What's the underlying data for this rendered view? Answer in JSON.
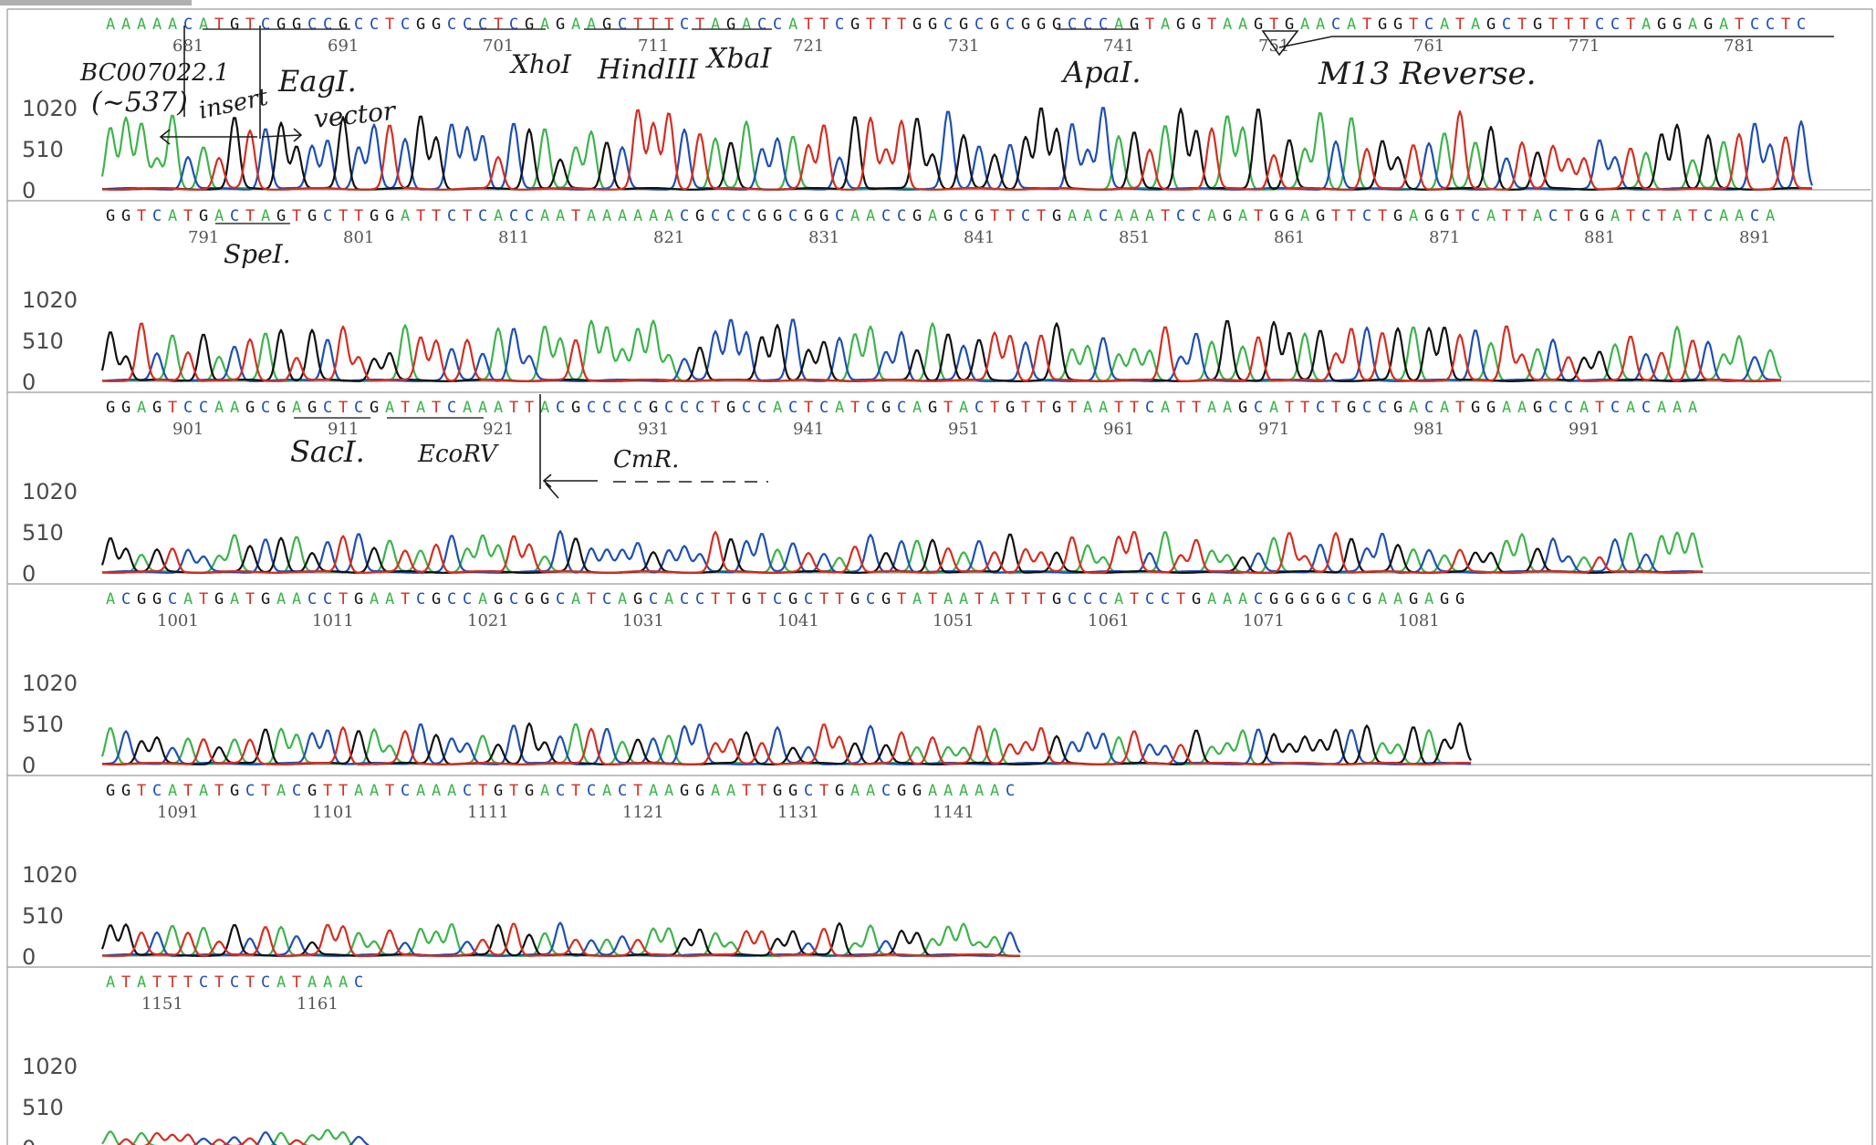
{
  "chart_data": {
    "type": "chromatogram",
    "y_ticks": [
      "1020",
      "510",
      "0"
    ],
    "ylim": [
      0,
      1400
    ],
    "colors": {
      "A": "#3cb44b",
      "C": "#1e4fb4",
      "G": "#111111",
      "T": "#d62d20"
    },
    "rows": [
      {
        "start": 676,
        "bases": "AAAAACATGTCGGCCGCCTCGGCCCTCGAGAAGCTTTCTAGACCATTCGTTTGGCGCGCGGGCCCAGTAGGTAAGTGAACATGGTCATAGCTGTTTCCTAGGAGATCCTC",
        "labels": [
          "681",
          "691",
          "701",
          "711",
          "721",
          "731",
          "741",
          "751",
          "761",
          "771",
          "781"
        ],
        "amp": 1.0
      },
      {
        "start": 785,
        "bases": "GGTCATGACTAGTGCTTGGATTCTCACCAATAAAAAACGCCCGGCGGCAACCGAGCGTTCTGAACAAATCCAGATGGAGTTCTGAGGTCATTACTGGATCTATCAACA",
        "labels": [
          "791",
          "801",
          "811",
          "821",
          "831",
          "841",
          "851",
          "861",
          "871",
          "881",
          "891"
        ],
        "amp": 0.75
      },
      {
        "start": 896,
        "bases": "GGAGTCCAAGCGAGCTCGATATCAAATTACGCCCCGCCCTGCCACTCATCGCAGTACTGTTGTAATTCATTAAGCATTCTGCCGACATGGAAGCCATCACAAA",
        "labels": [
          "901",
          "911",
          "921",
          "931",
          "941",
          "951",
          "961",
          "971",
          "981",
          "991"
        ],
        "amp": 0.5
      },
      {
        "start": 997,
        "bases": "ACGGCATGATGAACCTGAATCGCCAGCGGCATCAGCACCTTGTCGCTTGCGTATAATATTTGCCCATCCTGAAACGGGGGCGAAGAGG",
        "labels": [
          "1001",
          "1011",
          "1021",
          "1031",
          "1041",
          "1051",
          "1061",
          "1071",
          "1081"
        ],
        "amp": 0.5
      },
      {
        "start": 1087,
        "bases": "GGTCATATGCTACGTTAATCAAACTGTGACTCACTAAGGAATTGGCTGAACGGAAAAAC",
        "labels": [
          "1091",
          "1101",
          "1111",
          "1121",
          "1131",
          "1141"
        ],
        "amp": 0.4
      },
      {
        "start": 1148,
        "bases": "ATATTTCTCTCATAAAC",
        "labels": [
          "1151",
          "1161"
        ],
        "amp": 0.2
      }
    ]
  },
  "annotations": {
    "accession_line1": "BC007022.1",
    "accession_line2": "(~537)",
    "insert": "insert",
    "vector": "vector",
    "eagi": "EagI.",
    "xhoi": "XhoI",
    "hindiii": "HindIII",
    "xbai": "XbaI",
    "apai": "ApaI.",
    "m13_reverse": "M13 Reverse.",
    "spei": "SpeI.",
    "saci": "SacI.",
    "ecorv": "EcoRV",
    "cmr": "CmR."
  }
}
